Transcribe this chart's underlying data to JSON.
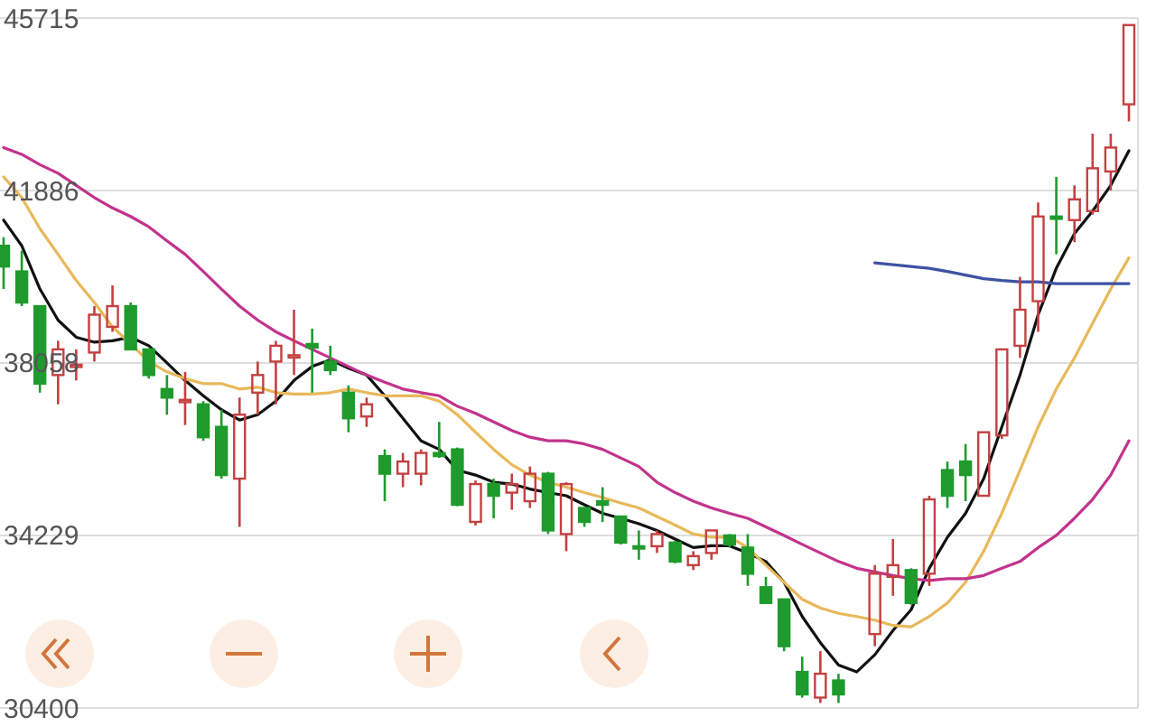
{
  "chart_data": {
    "type": "candlestick",
    "categories": [
      null,
      null,
      null,
      null,
      null,
      null,
      null,
      null,
      null,
      null,
      null,
      null,
      null,
      null,
      null,
      null,
      null,
      null,
      null,
      null,
      null,
      null,
      null,
      null,
      null,
      null,
      null,
      null,
      null,
      null,
      null,
      null,
      null,
      null,
      null,
      null,
      null,
      null,
      null,
      null,
      null,
      null,
      null,
      null,
      null,
      null,
      null,
      null,
      null,
      null,
      null,
      null,
      null,
      null,
      null,
      null,
      null,
      null,
      null,
      null,
      null,
      null,
      null
    ],
    "ohlc": [
      [
        40660,
        40850,
        39700,
        40200
      ],
      [
        40090,
        40550,
        39320,
        39400
      ],
      [
        39320,
        39320,
        37400,
        37600
      ],
      [
        37790,
        38550,
        37140,
        38360
      ],
      [
        37980,
        38360,
        37670,
        38020
      ],
      [
        38290,
        39320,
        38090,
        39130
      ],
      [
        38860,
        39780,
        38750,
        39320
      ],
      [
        39320,
        39400,
        38360,
        38360
      ],
      [
        38360,
        38360,
        37710,
        37790
      ],
      [
        37480,
        37790,
        36910,
        37290
      ],
      [
        37190,
        37860,
        36680,
        37240
      ],
      [
        37140,
        37210,
        36330,
        36410
      ],
      [
        36640,
        37020,
        35490,
        35570
      ],
      [
        35490,
        37290,
        34420,
        36910
      ],
      [
        37400,
        38090,
        36910,
        37790
      ],
      [
        38090,
        38550,
        37140,
        38440
      ],
      [
        38180,
        39240,
        37790,
        38230
      ],
      [
        38480,
        38820,
        37400,
        38400
      ],
      [
        38090,
        38440,
        37790,
        37900
      ],
      [
        37400,
        37560,
        36520,
        36830
      ],
      [
        36870,
        37290,
        36640,
        37140
      ],
      [
        35990,
        36140,
        34990,
        35600
      ],
      [
        35600,
        36060,
        35300,
        35870
      ],
      [
        35600,
        36140,
        35340,
        36060
      ],
      [
        36060,
        36750,
        35950,
        35990
      ],
      [
        36140,
        36180,
        34880,
        34910
      ],
      [
        34530,
        35450,
        34450,
        35370
      ],
      [
        35370,
        35490,
        34610,
        35110
      ],
      [
        35180,
        35600,
        34800,
        35370
      ],
      [
        34990,
        35760,
        34840,
        35600
      ],
      [
        35600,
        35640,
        34260,
        34340
      ],
      [
        34260,
        35410,
        33880,
        35370
      ],
      [
        34840,
        34840,
        34420,
        34530
      ],
      [
        34990,
        35300,
        34530,
        34910
      ],
      [
        34650,
        34650,
        34030,
        34070
      ],
      [
        33990,
        34340,
        33690,
        33950
      ],
      [
        33990,
        34340,
        33840,
        34260
      ],
      [
        34070,
        34110,
        33610,
        33650
      ],
      [
        33570,
        33880,
        33460,
        33770
      ],
      [
        33840,
        34340,
        33690,
        34340
      ],
      [
        34230,
        34260,
        33960,
        34030
      ],
      [
        33960,
        34260,
        33110,
        33380
      ],
      [
        33080,
        33310,
        32730,
        32730
      ],
      [
        32810,
        32810,
        31660,
        31770
      ],
      [
        31200,
        31540,
        30630,
        30700
      ],
      [
        30630,
        31660,
        30510,
        31160
      ],
      [
        31010,
        31160,
        30510,
        30700
      ],
      null,
      [
        32040,
        33570,
        31770,
        33380
      ],
      [
        33310,
        34150,
        32890,
        33570
      ],
      [
        33460,
        33500,
        32690,
        32730
      ],
      [
        33380,
        35110,
        33110,
        35030
      ],
      [
        35680,
        35870,
        34840,
        35110
      ],
      [
        35870,
        36260,
        34990,
        35570
      ],
      [
        35110,
        36520,
        35110,
        36520
      ],
      [
        36450,
        38360,
        36370,
        38360
      ],
      [
        38440,
        39970,
        38170,
        39240
      ],
      [
        39430,
        41620,
        38750,
        41310
      ],
      [
        41310,
        42190,
        40470,
        41270
      ],
      [
        41230,
        42000,
        40740,
        41690
      ],
      [
        41430,
        43150,
        41350,
        42380
      ],
      [
        42310,
        43150,
        41890,
        42840
      ],
      [
        43800,
        45560,
        43420,
        45560
      ]
    ],
    "colors": [
      "#1e9b2c",
      "#1e9b2c",
      "#1e9b2c",
      "#c44040",
      "#c44040",
      "#c44040",
      "#c44040",
      "#1e9b2c",
      "#1e9b2c",
      "#1e9b2c",
      "#c44040",
      "#1e9b2c",
      "#1e9b2c",
      "#c44040",
      "#c44040",
      "#c44040",
      "#c44040",
      "#1e9b2c",
      "#1e9b2c",
      "#1e9b2c",
      "#c44040",
      "#1e9b2c",
      "#c44040",
      "#c44040",
      "#1e9b2c",
      "#1e9b2c",
      "#c44040",
      "#1e9b2c",
      "#c44040",
      "#c44040",
      "#1e9b2c",
      "#c44040",
      "#1e9b2c",
      "#1e9b2c",
      "#1e9b2c",
      "#1e9b2c",
      "#c44040",
      "#1e9b2c",
      "#c44040",
      "#c44040",
      "#1e9b2c",
      "#1e9b2c",
      "#1e9b2c",
      "#1e9b2c",
      "#1e9b2c",
      "#c44040",
      "#1e9b2c",
      null,
      "#c44040",
      "#c44040",
      "#1e9b2c",
      "#c44040",
      "#1e9b2c",
      "#1e9b2c",
      "#c44040",
      "#c44040",
      "#c44040",
      "#c44040",
      "#1e9b2c",
      "#c44040",
      "#c44040",
      "#c44040",
      "#c44040"
    ],
    "series": [
      {
        "type": "line",
        "color": "#111111",
        "values": [
          41230,
          40660,
          39700,
          39010,
          38630,
          38520,
          38550,
          38630,
          38440,
          38060,
          37670,
          37330,
          37020,
          36790,
          36910,
          37210,
          37670,
          37980,
          38130,
          37940,
          37790,
          37330,
          36830,
          36330,
          36140,
          35680,
          35570,
          35410,
          35370,
          35260,
          35180,
          35110,
          34910,
          34720,
          34610,
          34490,
          34340,
          34150,
          33960,
          34000,
          34000,
          33840,
          33650,
          33190,
          32430,
          31850,
          31350,
          31200,
          31580,
          32120,
          32580,
          33500,
          34190,
          34720,
          35490,
          36640,
          37790,
          39130,
          40160,
          40930,
          41430,
          42000,
          42770
        ]
      },
      {
        "type": "line",
        "color": "#e8b85a",
        "values": [
          42190,
          41730,
          41040,
          40470,
          39890,
          39400,
          38860,
          38480,
          38090,
          37860,
          37710,
          37600,
          37600,
          37480,
          37520,
          37400,
          37370,
          37370,
          37400,
          37480,
          37400,
          37330,
          37330,
          37330,
          37210,
          36910,
          36520,
          36140,
          35800,
          35570,
          35410,
          35300,
          35180,
          35070,
          34950,
          34840,
          34650,
          34460,
          34260,
          34190,
          34190,
          33960,
          33570,
          33190,
          32810,
          32620,
          32500,
          32430,
          32350,
          32230,
          32200,
          32430,
          32730,
          33190,
          33880,
          34720,
          35680,
          36640,
          37480,
          38170,
          38940,
          39700,
          40390
        ]
      },
      {
        "type": "line",
        "color": "#c2338c",
        "values": [
          42840,
          42690,
          42460,
          42270,
          42000,
          41730,
          41500,
          41310,
          41080,
          40770,
          40470,
          40090,
          39700,
          39320,
          39010,
          38750,
          38550,
          38360,
          38170,
          37980,
          37790,
          37630,
          37480,
          37400,
          37330,
          37100,
          36940,
          36750,
          36560,
          36410,
          36330,
          36330,
          36260,
          36140,
          35950,
          35760,
          35410,
          35180,
          34990,
          34840,
          34720,
          34610,
          34420,
          34230,
          34030,
          33840,
          33650,
          33500,
          33420,
          33340,
          33270,
          33230,
          33270,
          33270,
          33340,
          33500,
          33650,
          33960,
          34230,
          34610,
          35030,
          35570,
          36330
        ]
      },
      {
        "type": "line",
        "color": "#3d52a3",
        "values": [
          null,
          null,
          null,
          null,
          null,
          null,
          null,
          null,
          null,
          null,
          null,
          null,
          null,
          null,
          null,
          null,
          null,
          null,
          null,
          null,
          null,
          null,
          null,
          null,
          null,
          null,
          null,
          null,
          null,
          null,
          null,
          null,
          null,
          null,
          null,
          null,
          null,
          null,
          null,
          null,
          null,
          null,
          null,
          null,
          null,
          null,
          null,
          null,
          40280,
          40240,
          40200,
          40160,
          40090,
          40010,
          39930,
          39890,
          39860,
          39860,
          39820,
          39820,
          39820,
          39820,
          39820
        ]
      }
    ],
    "ylim": [
      30400,
      45715
    ],
    "yticks": [
      30400,
      34229,
      38058,
      41886,
      45715
    ],
    "grid": "y"
  }
}
